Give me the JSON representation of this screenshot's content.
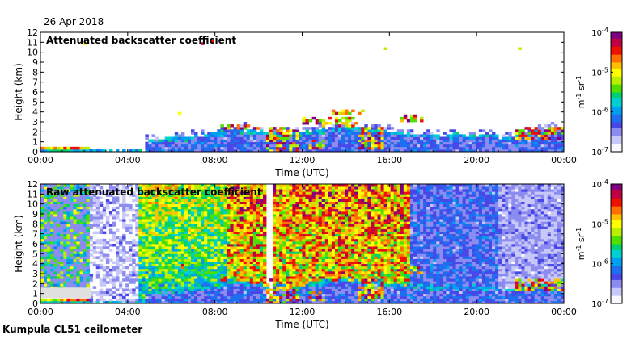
{
  "date": "26 Apr 2018",
  "footer": "Kumpula CL51 ceilometer",
  "colors": {
    "background_white": "#ffffff",
    "missing_data_gray": "#e0e0e0",
    "colormap": [
      "#f8f8ff",
      "#c8c8f8",
      "#8c8cf0",
      "#4848e8",
      "#1e6ef0",
      "#00a0f0",
      "#00d0d0",
      "#00d070",
      "#50e000",
      "#b8f000",
      "#ffff00",
      "#ffc000",
      "#ff7000",
      "#f01000",
      "#c00040",
      "#800080"
    ]
  },
  "chart_data": [
    {
      "type": "heatmap",
      "title": "Attenuated backscatter coefficient",
      "xlabel": "Time (UTC)",
      "ylabel": "Height (km)",
      "xlim": [
        0,
        24
      ],
      "ylim": [
        0,
        12
      ],
      "x_ticks": [
        "00:00",
        "04:00",
        "08:00",
        "12:00",
        "16:00",
        "20:00",
        "00:00"
      ],
      "y_ticks": [
        "0",
        "1",
        "2",
        "3",
        "4",
        "5",
        "6",
        "7",
        "8",
        "9",
        "10",
        "11",
        "12"
      ],
      "colorbar": {
        "scale": "log",
        "range": [
          1e-07,
          0.0001
        ],
        "ticks": [
          "10-7",
          "10-6",
          "10-5",
          "10-4"
        ],
        "label": "m-1 sr-1"
      }
    },
    {
      "type": "heatmap",
      "title": "Raw attenuated backscatter coefficient",
      "xlabel": "Time (UTC)",
      "ylabel": "Height (km)",
      "xlim": [
        0,
        24
      ],
      "ylim": [
        0,
        12
      ],
      "x_ticks": [
        "00:00",
        "04:00",
        "08:00",
        "12:00",
        "16:00",
        "20:00",
        "00:00"
      ],
      "y_ticks": [
        "0",
        "1",
        "2",
        "3",
        "4",
        "5",
        "6",
        "7",
        "8",
        "9",
        "10",
        "11",
        "12"
      ],
      "colorbar": {
        "scale": "log",
        "range": [
          1e-07,
          0.0001
        ],
        "ticks": [
          "10-7",
          "10-6",
          "10-5",
          "10-4"
        ],
        "label": "m-1 sr-1"
      }
    }
  ]
}
